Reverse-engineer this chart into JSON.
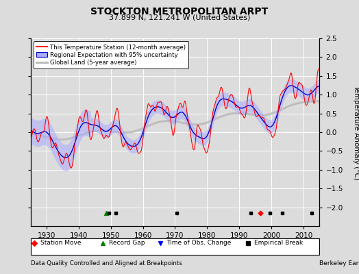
{
  "title": "STOCKTON METROPOLITAN ARPT",
  "subtitle": "37.899 N, 121.241 W (United States)",
  "ylabel": "Temperature Anomaly (°C)",
  "footer_left": "Data Quality Controlled and Aligned at Breakpoints",
  "footer_right": "Berkeley Earth",
  "xlim": [
    1925,
    2015
  ],
  "ylim": [
    -2.5,
    2.5
  ],
  "yticks": [
    -2,
    -1.5,
    -1,
    -0.5,
    0,
    0.5,
    1,
    1.5,
    2,
    2.5
  ],
  "xticks": [
    1930,
    1940,
    1950,
    1960,
    1970,
    1980,
    1990,
    2000,
    2010
  ],
  "bg_color": "#dcdcdc",
  "station_move_x": [
    1996.5
  ],
  "record_gap_x": [
    1948.5
  ],
  "time_obs_change_x": [],
  "empirical_break_x": [
    1949.5,
    1951.5,
    1970.5,
    1993.5,
    1999.5,
    2003.5,
    2012.5
  ],
  "legend_labels": [
    "This Temperature Station (12-month average)",
    "Regional Expectation with 95% uncertainty",
    "Global Land (5-year average)"
  ],
  "colors": {
    "station": "#ff0000",
    "regional": "#0000cc",
    "regional_fill": "#aaaaff",
    "global": "#bbbbbb",
    "bg": "#dcdcdc",
    "grid": "#ffffff"
  }
}
